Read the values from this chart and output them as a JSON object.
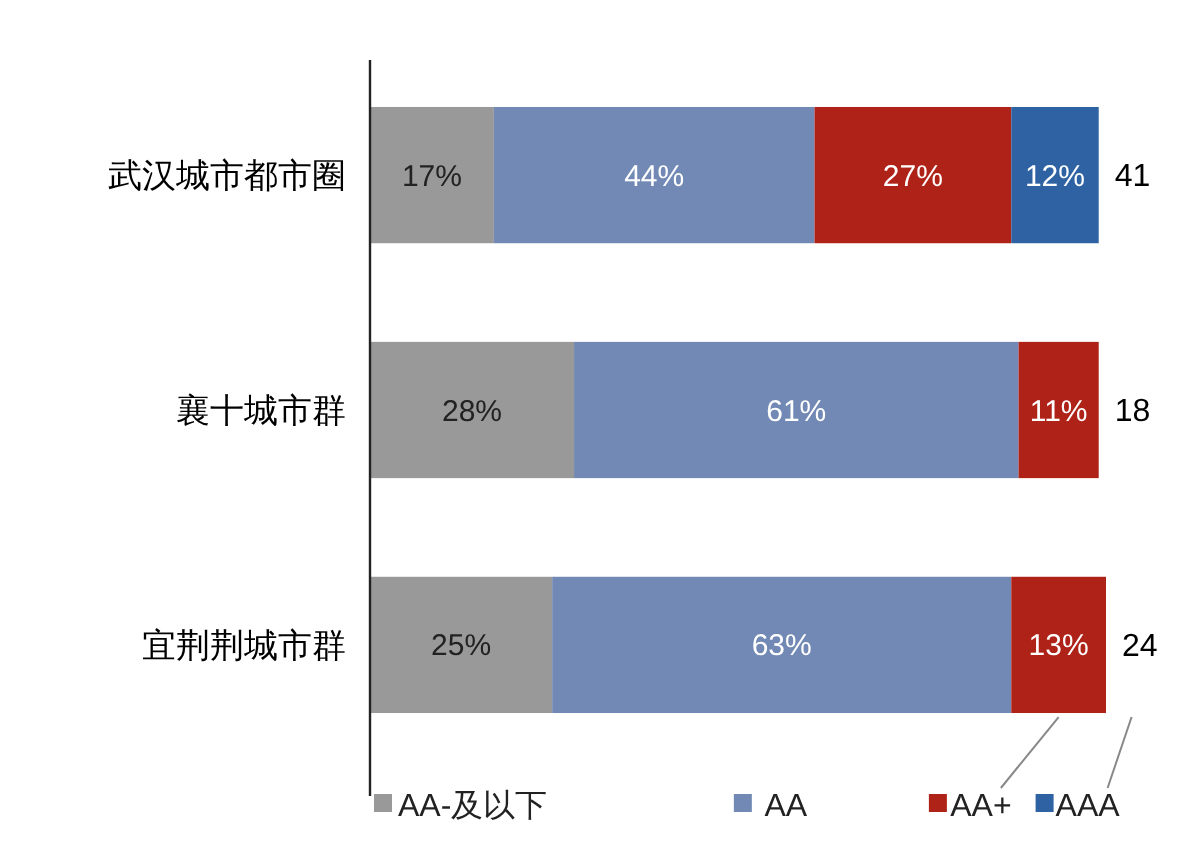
{
  "chart_data": {
    "type": "bar",
    "orientation": "horizontal",
    "stacked": true,
    "categories": [
      "武汉城市都市圈",
      "襄十城市群",
      "宜荆荆城市群"
    ],
    "series": [
      {
        "name": "AA-及以下",
        "color": "#999999",
        "values": [
          17,
          28,
          25
        ],
        "value_labels": [
          "17%",
          "28%",
          "25%"
        ]
      },
      {
        "name": "AA",
        "color": "#7189b4",
        "values": [
          44,
          61,
          63
        ],
        "value_labels": [
          "44%",
          "61%",
          "63%"
        ]
      },
      {
        "name": "AA+",
        "color": "#ae2217",
        "values": [
          27,
          11,
          13
        ],
        "value_labels": [
          "27%",
          "11%",
          "13%"
        ]
      },
      {
        "name": "AAA",
        "color": "#2e62a3",
        "values": [
          12,
          null,
          null
        ],
        "value_labels": [
          "12%",
          null,
          null
        ]
      }
    ],
    "xlim": [
      0,
      101
    ],
    "tick_labels": "y",
    "legend": "bottom",
    "annotations": [
      "41",
      "18",
      "24"
    ]
  }
}
